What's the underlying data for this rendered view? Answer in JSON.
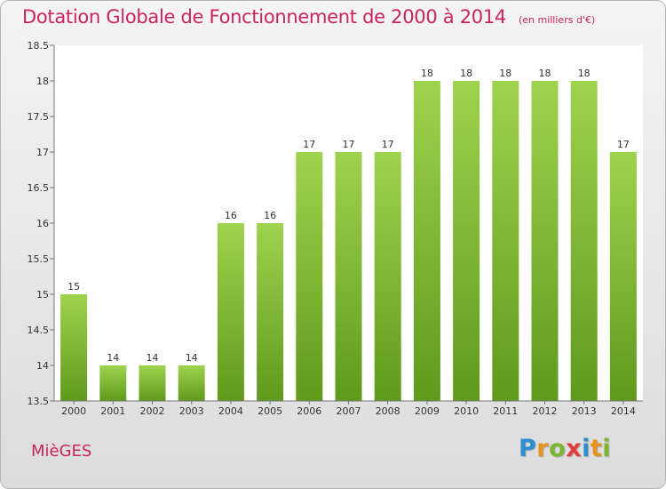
{
  "header": {
    "title": "Dotation Globale de Fonctionnement de 2000 à 2014",
    "subtitle": "(en milliers d'€)"
  },
  "footer": {
    "commune": "MièGES",
    "logo": {
      "letters": [
        "P",
        "r",
        "o",
        "x",
        "i",
        "t",
        "i"
      ],
      "colors": [
        "#2a8fd0",
        "#e8931e",
        "#7cb82f",
        "#e23b3b",
        "#2a8fd0",
        "#e8931e",
        "#7cb82f"
      ]
    }
  },
  "colors": {
    "bar_top": "#9fd24e",
    "bar_bottom": "#5f9a1c",
    "title": "#c8245f"
  },
  "chart_data": {
    "type": "bar",
    "title": "Dotation Globale de Fonctionnement de 2000 à 2014",
    "subtitle": "(en milliers d'€)",
    "categories": [
      "2000",
      "2001",
      "2002",
      "2003",
      "2004",
      "2005",
      "2006",
      "2007",
      "2008",
      "2009",
      "2010",
      "2011",
      "2012",
      "2013",
      "2014"
    ],
    "values": [
      15,
      14,
      14,
      14,
      16,
      16,
      17,
      17,
      17,
      18,
      18,
      18,
      18,
      18,
      17
    ],
    "data_labels": [
      "15",
      "14",
      "14",
      "14",
      "16",
      "16",
      "17",
      "17",
      "17",
      "18",
      "18",
      "18",
      "18",
      "18",
      "17"
    ],
    "yticks": [
      "13.5",
      "14",
      "14.5",
      "15",
      "15.5",
      "16",
      "16.5",
      "17",
      "17.5",
      "18",
      "18.5"
    ],
    "ylim": [
      13.5,
      18.5
    ],
    "grid": false,
    "legend": "none"
  }
}
